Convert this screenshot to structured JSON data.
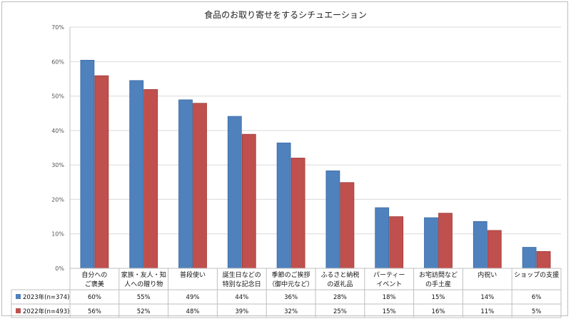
{
  "chart_data": {
    "type": "bar",
    "title": "食品のお取り寄せをするシチュエーション",
    "categories": [
      [
        "自分への",
        "ご褒美"
      ],
      [
        "家族・友人・知",
        "人への贈り物"
      ],
      [
        "普段使い"
      ],
      [
        "誕生日などの",
        "特別な記念日"
      ],
      [
        "季節のご挨拶",
        "（御中元など）"
      ],
      [
        "ふるさと納税",
        "の返礼品"
      ],
      [
        "パーティー",
        "イベント"
      ],
      [
        "お宅訪問など",
        "の手土産"
      ],
      [
        "内祝い"
      ],
      [
        "ショップの支援"
      ]
    ],
    "series": [
      {
        "name": "2023年(n=374)",
        "color": "#4f81bd",
        "values": [
          60.4,
          54.5,
          48.9,
          44.1,
          36.4,
          28.3,
          17.6,
          14.7,
          13.6,
          6.1
        ],
        "labels": [
          "60%",
          "55%",
          "49%",
          "44%",
          "36%",
          "28%",
          "18%",
          "15%",
          "14%",
          "6%"
        ]
      },
      {
        "name": "2022年(n=493)",
        "color": "#c0504d",
        "values": [
          55.9,
          51.9,
          47.9,
          38.9,
          32.0,
          24.9,
          15.0,
          16.0,
          11.0,
          4.9
        ],
        "labels": [
          "56%",
          "52%",
          "48%",
          "39%",
          "32%",
          "25%",
          "15%",
          "16%",
          "11%",
          "5%"
        ]
      }
    ],
    "yticks": [
      "0%",
      "10%",
      "20%",
      "30%",
      "40%",
      "50%",
      "60%",
      "70%"
    ],
    "ylim": [
      0,
      70
    ],
    "grid": true,
    "legend": "data-table"
  }
}
